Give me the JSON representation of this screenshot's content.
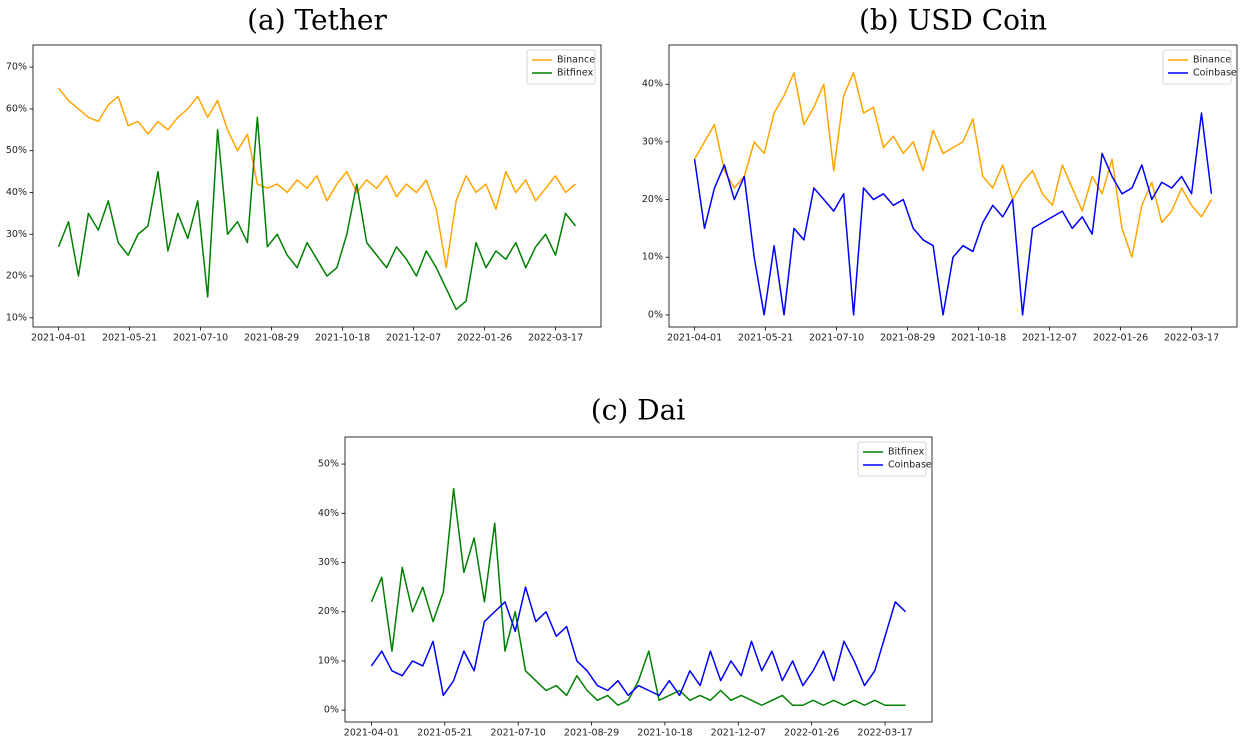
{
  "chart_data": [
    {
      "type": "line",
      "title": "(a) Tether",
      "x": [
        "2021-04-01",
        "2021-04-08",
        "2021-04-15",
        "2021-04-22",
        "2021-04-29",
        "2021-05-06",
        "2021-05-13",
        "2021-05-20",
        "2021-05-27",
        "2021-06-03",
        "2021-06-10",
        "2021-06-17",
        "2021-06-24",
        "2021-07-01",
        "2021-07-08",
        "2021-07-15",
        "2021-07-22",
        "2021-07-29",
        "2021-08-05",
        "2021-08-12",
        "2021-08-19",
        "2021-08-26",
        "2021-09-02",
        "2021-09-09",
        "2021-09-16",
        "2021-09-23",
        "2021-09-30",
        "2021-10-07",
        "2021-10-14",
        "2021-10-21",
        "2021-10-28",
        "2021-11-04",
        "2021-11-11",
        "2021-11-18",
        "2021-11-25",
        "2021-12-02",
        "2021-12-09",
        "2021-12-16",
        "2021-12-23",
        "2021-12-30",
        "2022-01-06",
        "2022-01-13",
        "2022-01-20",
        "2022-01-27",
        "2022-02-03",
        "2022-02-10",
        "2022-02-17",
        "2022-02-24",
        "2022-03-03",
        "2022-03-10",
        "2022-03-17",
        "2022-03-24",
        "2022-03-31"
      ],
      "xlim": [
        "2021-03-14",
        "2022-04-18"
      ],
      "xticks": [
        "2021-04-01",
        "2021-05-21",
        "2021-07-10",
        "2021-08-29",
        "2021-10-18",
        "2021-12-07",
        "2022-01-26",
        "2022-03-17"
      ],
      "ylim": [
        7.8,
        75.3
      ],
      "yticks": [
        {
          "value": 10,
          "label": "10%"
        },
        {
          "value": 20,
          "label": "20%"
        },
        {
          "value": 30,
          "label": "30%"
        },
        {
          "value": 40,
          "label": "40%"
        },
        {
          "value": 50,
          "label": "50%"
        },
        {
          "value": 60,
          "label": "60%"
        },
        {
          "value": 70,
          "label": "70%"
        }
      ],
      "legend": "upper right",
      "series": [
        {
          "name": "Binance",
          "color": "#ffa500",
          "values": [
            65,
            62,
            60,
            58,
            57,
            61,
            63,
            56,
            57,
            54,
            57,
            55,
            58,
            60,
            63,
            58,
            62,
            55,
            50,
            54,
            42,
            41,
            42,
            40,
            43,
            41,
            44,
            38,
            42,
            45,
            40,
            43,
            41,
            44,
            39,
            42,
            40,
            43,
            36,
            22,
            38,
            44,
            40,
            42,
            36,
            45,
            40,
            43,
            38,
            41,
            44,
            40,
            42
          ]
        },
        {
          "name": "Bitfinex",
          "color": "#008000",
          "values": [
            27,
            33,
            20,
            35,
            31,
            38,
            28,
            25,
            30,
            32,
            45,
            26,
            35,
            29,
            38,
            15,
            55,
            30,
            33,
            28,
            58,
            27,
            30,
            25,
            22,
            28,
            24,
            20,
            22,
            30,
            42,
            28,
            25,
            22,
            27,
            24,
            20,
            26,
            22,
            17,
            12,
            14,
            28,
            22,
            26,
            24,
            28,
            22,
            27,
            30,
            25,
            35,
            32
          ]
        }
      ]
    },
    {
      "type": "line",
      "title": "(b) USD Coin",
      "x": [
        "2021-04-01",
        "2021-04-08",
        "2021-04-15",
        "2021-04-22",
        "2021-04-29",
        "2021-05-06",
        "2021-05-13",
        "2021-05-20",
        "2021-05-27",
        "2021-06-03",
        "2021-06-10",
        "2021-06-17",
        "2021-06-24",
        "2021-07-01",
        "2021-07-08",
        "2021-07-15",
        "2021-07-22",
        "2021-07-29",
        "2021-08-05",
        "2021-08-12",
        "2021-08-19",
        "2021-08-26",
        "2021-09-02",
        "2021-09-09",
        "2021-09-16",
        "2021-09-23",
        "2021-09-30",
        "2021-10-07",
        "2021-10-14",
        "2021-10-21",
        "2021-10-28",
        "2021-11-04",
        "2021-11-11",
        "2021-11-18",
        "2021-11-25",
        "2021-12-02",
        "2021-12-09",
        "2021-12-16",
        "2021-12-23",
        "2021-12-30",
        "2022-01-06",
        "2022-01-13",
        "2022-01-20",
        "2022-01-27",
        "2022-02-03",
        "2022-02-10",
        "2022-02-17",
        "2022-02-24",
        "2022-03-03",
        "2022-03-10",
        "2022-03-17",
        "2022-03-24",
        "2022-03-31"
      ],
      "xlim": [
        "2021-03-14",
        "2022-04-18"
      ],
      "xticks": [
        "2021-04-01",
        "2021-05-21",
        "2021-07-10",
        "2021-08-29",
        "2021-10-18",
        "2021-12-07",
        "2022-01-26",
        "2022-03-17"
      ],
      "ylim": [
        -2.1,
        46.8
      ],
      "yticks": [
        {
          "value": 0,
          "label": "0%"
        },
        {
          "value": 10,
          "label": "10%"
        },
        {
          "value": 20,
          "label": "20%"
        },
        {
          "value": 30,
          "label": "30%"
        },
        {
          "value": 40,
          "label": "40%"
        }
      ],
      "legend": "upper right",
      "series": [
        {
          "name": "Binance",
          "color": "#ffa500",
          "values": [
            27,
            30,
            33,
            25,
            22,
            24,
            30,
            28,
            35,
            38,
            42,
            33,
            36,
            40,
            25,
            38,
            42,
            35,
            36,
            29,
            31,
            28,
            30,
            25,
            32,
            28,
            29,
            30,
            34,
            24,
            22,
            26,
            20,
            23,
            25,
            21,
            19,
            26,
            22,
            18,
            24,
            21,
            27,
            15,
            10,
            19,
            23,
            16,
            18,
            22,
            19,
            17,
            20
          ]
        },
        {
          "name": "Coinbase",
          "color": "#0000ff",
          "values": [
            27,
            15,
            22,
            26,
            20,
            24,
            10,
            0,
            12,
            0,
            15,
            13,
            22,
            20,
            18,
            21,
            0,
            22,
            20,
            21,
            19,
            20,
            15,
            13,
            12,
            0,
            10,
            12,
            11,
            16,
            19,
            17,
            20,
            0,
            15,
            16,
            17,
            18,
            15,
            17,
            14,
            28,
            24,
            21,
            22,
            26,
            20,
            23,
            22,
            24,
            21,
            35,
            21
          ]
        }
      ]
    },
    {
      "type": "line",
      "title": "(c) Dai",
      "x": [
        "2021-04-01",
        "2021-04-08",
        "2021-04-15",
        "2021-04-22",
        "2021-04-29",
        "2021-05-06",
        "2021-05-13",
        "2021-05-20",
        "2021-05-27",
        "2021-06-03",
        "2021-06-10",
        "2021-06-17",
        "2021-06-24",
        "2021-07-01",
        "2021-07-08",
        "2021-07-15",
        "2021-07-22",
        "2021-07-29",
        "2021-08-05",
        "2021-08-12",
        "2021-08-19",
        "2021-08-26",
        "2021-09-02",
        "2021-09-09",
        "2021-09-16",
        "2021-09-23",
        "2021-09-30",
        "2021-10-07",
        "2021-10-14",
        "2021-10-21",
        "2021-10-28",
        "2021-11-04",
        "2021-11-11",
        "2021-11-18",
        "2021-11-25",
        "2021-12-02",
        "2021-12-09",
        "2021-12-16",
        "2021-12-23",
        "2021-12-30",
        "2022-01-06",
        "2022-01-13",
        "2022-01-20",
        "2022-01-27",
        "2022-02-03",
        "2022-02-10",
        "2022-02-17",
        "2022-02-24",
        "2022-03-03",
        "2022-03-10",
        "2022-03-17",
        "2022-03-24",
        "2022-03-31"
      ],
      "xlim": [
        "2021-03-14",
        "2022-04-18"
      ],
      "xticks": [
        "2021-04-01",
        "2021-05-21",
        "2021-07-10",
        "2021-08-29",
        "2021-10-18",
        "2021-12-07",
        "2022-01-26",
        "2022-03-17"
      ],
      "ylim": [
        -2.4,
        55.5
      ],
      "yticks": [
        {
          "value": 0,
          "label": "0%"
        },
        {
          "value": 10,
          "label": "10%"
        },
        {
          "value": 20,
          "label": "20%"
        },
        {
          "value": 30,
          "label": "30%"
        },
        {
          "value": 40,
          "label": "40%"
        },
        {
          "value": 50,
          "label": "50%"
        }
      ],
      "legend": "upper right",
      "series": [
        {
          "name": "Bitfinex",
          "color": "#008000",
          "values": [
            22,
            27,
            12,
            29,
            20,
            25,
            18,
            24,
            45,
            28,
            35,
            22,
            38,
            12,
            20,
            8,
            6,
            4,
            5,
            3,
            7,
            4,
            2,
            3,
            1,
            2,
            6,
            12,
            2,
            3,
            4,
            2,
            3,
            2,
            4,
            2,
            3,
            2,
            1,
            2,
            3,
            1,
            1,
            2,
            1,
            2,
            1,
            2,
            1,
            2,
            1,
            1,
            1
          ]
        },
        {
          "name": "Coinbase",
          "color": "#0000ff",
          "values": [
            9,
            12,
            8,
            7,
            10,
            9,
            14,
            3,
            6,
            12,
            8,
            18,
            20,
            22,
            16,
            25,
            18,
            20,
            15,
            17,
            10,
            8,
            5,
            4,
            6,
            3,
            5,
            4,
            3,
            6,
            3,
            8,
            5,
            12,
            6,
            10,
            7,
            14,
            8,
            12,
            6,
            10,
            5,
            8,
            12,
            6,
            14,
            10,
            5,
            8,
            15,
            22,
            20
          ]
        }
      ]
    }
  ]
}
